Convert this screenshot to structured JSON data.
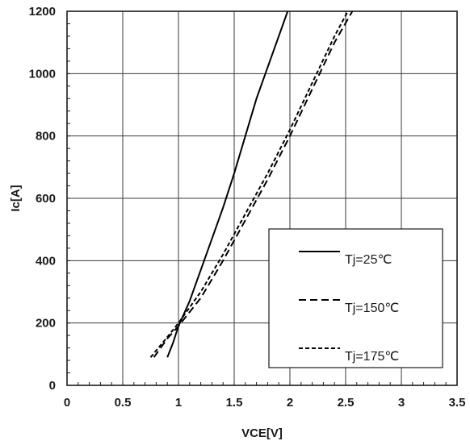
{
  "chart_data": {
    "type": "line",
    "xlabel": "VCE[V]",
    "ylabel": "Ic[A]",
    "xlim": [
      0,
      3.5
    ],
    "ylim": [
      0,
      1200
    ],
    "xticks": [
      0,
      0.5,
      1,
      1.5,
      2,
      2.5,
      3,
      3.5
    ],
    "xtick_labels": [
      "0",
      "0.5",
      "1",
      "1.5",
      "2",
      "2.5",
      "3",
      "3.5"
    ],
    "yticks": [
      0,
      200,
      400,
      600,
      800,
      1000,
      1200
    ],
    "ytick_labels": [
      "0",
      "200",
      "400",
      "600",
      "800",
      "1000",
      "1200"
    ],
    "grid": true,
    "legend_position": "bottom-right",
    "series": [
      {
        "name": "Tj=25℃",
        "line_style": "solid",
        "color": "#000000",
        "x": [
          0.9,
          0.95,
          1.0,
          1.1,
          1.2,
          1.3,
          1.4,
          1.5,
          1.6,
          1.7,
          1.8,
          1.9,
          1.98
        ],
        "y": [
          90,
          135,
          190,
          270,
          370,
          470,
          570,
          680,
          800,
          920,
          1020,
          1120,
          1200
        ]
      },
      {
        "name": "Tj=150℃",
        "line_style": "dashed",
        "color": "#000000",
        "x": [
          0.78,
          0.9,
          1.0,
          1.2,
          1.4,
          1.6,
          1.8,
          2.0,
          2.2,
          2.4,
          2.56
        ],
        "y": [
          90,
          150,
          190,
          280,
          400,
          530,
          660,
          800,
          950,
          1100,
          1200
        ]
      },
      {
        "name": "Tj=175℃",
        "line_style": "dotted",
        "color": "#000000",
        "x": [
          0.75,
          0.9,
          1.0,
          1.2,
          1.4,
          1.6,
          1.8,
          2.0,
          2.2,
          2.4,
          2.52
        ],
        "y": [
          90,
          155,
          200,
          300,
          420,
          550,
          680,
          820,
          970,
          1120,
          1200
        ]
      }
    ]
  }
}
